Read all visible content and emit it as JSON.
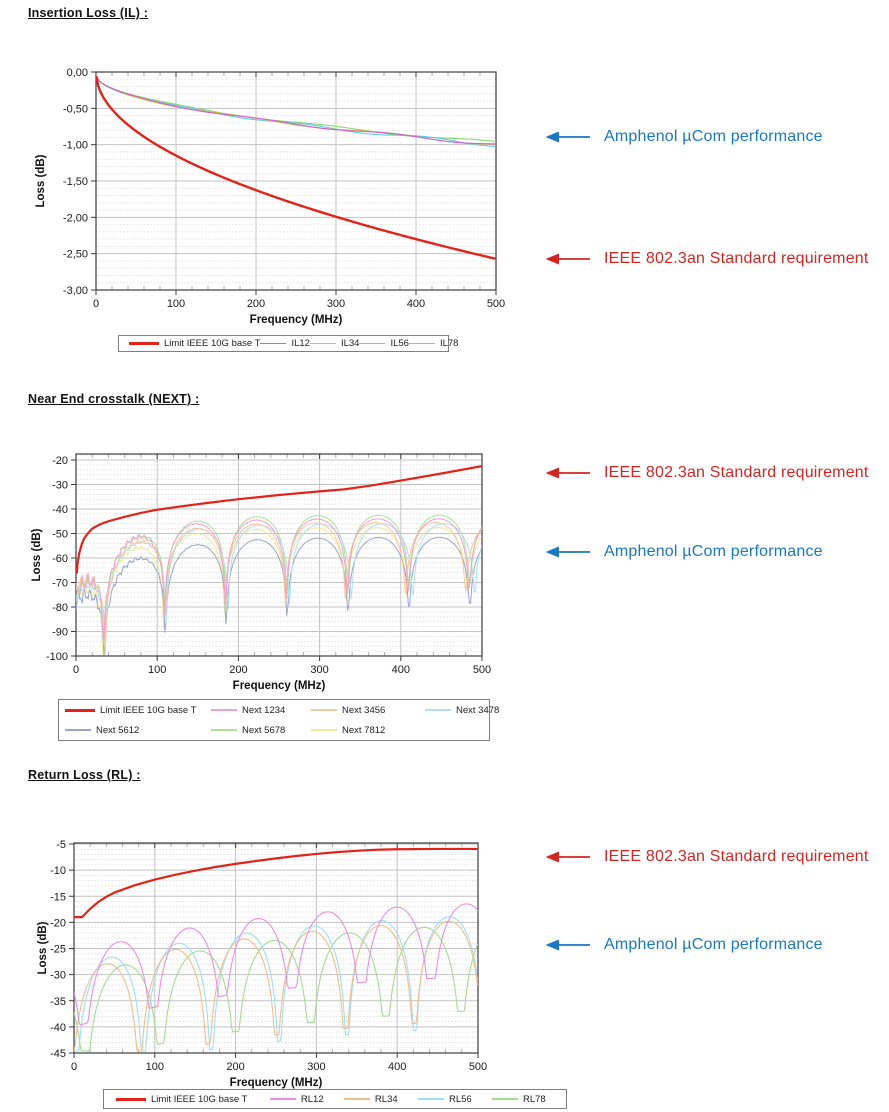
{
  "headings": {
    "il": "Insertion Loss (IL) :",
    "next": "Near End crosstalk (NEXT) :",
    "rl": "Return Loss (RL) :"
  },
  "annotations": {
    "performance": {
      "label": "Amphenol µCom performance",
      "color": "#1878c4"
    },
    "requirement": {
      "label": "IEEE 802.3an Standard requirement",
      "color": "#d62420"
    }
  },
  "chart_data": [
    {
      "id": "il",
      "type": "line",
      "title": "Insertion Loss (IL)",
      "xlabel": "Frequency (MHz)",
      "ylabel": "Loss (dB)",
      "xlim": [
        0,
        500
      ],
      "ylim": [
        -3,
        0
      ],
      "xticks": [
        0,
        100,
        200,
        300,
        400,
        500
      ],
      "yticks": [
        0,
        -0.5,
        -1,
        -1.5,
        -2,
        -2.5,
        -3
      ],
      "ytick_labels": [
        "0,00",
        "-0,50",
        "-1,00",
        "-1,50",
        "-2,00",
        "-2,50",
        "-3,00"
      ],
      "x_minor": 20,
      "y_minor": 0.1,
      "grid": true,
      "legend_position": "bottom",
      "series": [
        {
          "name": "Limit IEEE 10G base T",
          "color": "#e2231a",
          "width": 2.4,
          "gen": {
            "kind": "sqrt",
            "a": 0,
            "b": 0.115,
            "f0": 0.4,
            "f1": 500,
            "step": 2.5
          },
          "key_points": [
            [
              0,
              0
            ],
            [
              100,
              -1.15
            ],
            [
              200,
              -1.63
            ],
            [
              300,
              -1.99
            ],
            [
              400,
              -2.3
            ],
            [
              500,
              -2.57
            ]
          ]
        },
        {
          "name": "IL12",
          "color": "#cf5fd3",
          "width": 1.1,
          "gen": {
            "kind": "il",
            "a": 0.04,
            "b": 0.0428,
            "w": 0.022,
            "p": 26,
            "ph": 0
          },
          "key_points": [
            [
              0,
              -0.05
            ],
            [
              100,
              -0.47
            ],
            [
              200,
              -0.63
            ],
            [
              300,
              -0.78
            ],
            [
              400,
              -0.9
            ],
            [
              500,
              -1.0
            ]
          ]
        },
        {
          "name": "IL34",
          "color": "#e0bd3c",
          "width": 1.1,
          "gen": {
            "kind": "il",
            "a": 0.045,
            "b": 0.0425,
            "w": 0.024,
            "p": 29,
            "ph": 1.7
          },
          "key_points": [
            [
              0,
              -0.05
            ],
            [
              100,
              -0.47
            ],
            [
              200,
              -0.63
            ],
            [
              300,
              -0.78
            ],
            [
              400,
              -0.9
            ],
            [
              500,
              -1.0
            ]
          ]
        },
        {
          "name": "IL56",
          "color": "#5fd0e6",
          "width": 1.1,
          "gen": {
            "kind": "il",
            "a": 0.035,
            "b": 0.0432,
            "w": 0.027,
            "p": 24,
            "ph": 3.3
          },
          "key_points": [
            [
              0,
              -0.05
            ],
            [
              100,
              -0.48
            ],
            [
              200,
              -0.65
            ],
            [
              300,
              -0.8
            ],
            [
              400,
              -0.92
            ],
            [
              500,
              -1.0
            ]
          ]
        },
        {
          "name": "IL78",
          "color": "#8bd96a",
          "width": 1.1,
          "gen": {
            "kind": "il",
            "a": 0.03,
            "b": 0.0422,
            "w": 0.02,
            "p": 31,
            "ph": 4.9
          },
          "key_points": [
            [
              0,
              -0.04
            ],
            [
              100,
              -0.45
            ],
            [
              200,
              -0.62
            ],
            [
              300,
              -0.77
            ],
            [
              400,
              -0.88
            ],
            [
              500,
              -0.98
            ]
          ]
        }
      ]
    },
    {
      "id": "next",
      "type": "line",
      "title": "Near End crosstalk (NEXT)",
      "xlabel": "Frequency (MHz)",
      "ylabel": "Loss (dB)",
      "xlim": [
        0,
        500
      ],
      "ylim": [
        -100,
        -20
      ],
      "xticks": [
        0,
        100,
        200,
        300,
        400,
        500
      ],
      "yticks": [
        -20,
        -30,
        -40,
        -50,
        -60,
        -70,
        -80,
        -90,
        -100
      ],
      "x_minor": 20,
      "y_minor": 2,
      "grid": true,
      "legend_position": "bottom",
      "series": [
        {
          "name": "Limit IEEE 10G base T",
          "color": "#e2231a",
          "width": 2.2,
          "points": [
            [
              1,
              -66
            ],
            [
              2,
              -62
            ],
            [
              4,
              -58
            ],
            [
              7,
              -54.5
            ],
            [
              10,
              -52
            ],
            [
              15,
              -49.8
            ],
            [
              20,
              -48
            ],
            [
              30,
              -46.2
            ],
            [
              40,
              -45
            ],
            [
              60,
              -43.2
            ],
            [
              80,
              -41.6
            ],
            [
              100,
              -40.3
            ],
            [
              130,
              -38.9
            ],
            [
              160,
              -37.6
            ],
            [
              200,
              -36
            ],
            [
              250,
              -34.3
            ],
            [
              300,
              -32.8
            ],
            [
              330,
              -32
            ],
            [
              360,
              -30.6
            ],
            [
              400,
              -28.4
            ],
            [
              450,
              -25.5
            ],
            [
              500,
              -22.5
            ]
          ]
        },
        {
          "name": "Next 1234",
          "color": "#f2a0d0",
          "width": 1,
          "gen": {
            "kind": "scallop",
            "base": -44,
            "amp": 30,
            "tau": 55,
            "T": 75,
            "f0": 34,
            "fl": 0.006,
            "fls": 7e-05,
            "nz": 3.2,
            "ph": 0.7
          }
        },
        {
          "name": "Next 3456",
          "color": "#f6c89e",
          "width": 1,
          "gen": {
            "kind": "scallop",
            "base": -45.5,
            "amp": 28,
            "tau": 60,
            "T": 74,
            "f0": 36,
            "fl": 0.006,
            "fls": 7e-05,
            "nz": 2.5,
            "ph": 2.1
          }
        },
        {
          "name": "Next 3478",
          "color": "#aee0ef",
          "width": 1,
          "gen": {
            "kind": "scallop",
            "base": -46,
            "amp": 29,
            "tau": 58,
            "T": 76,
            "f0": 35,
            "fl": 0.0055,
            "fls": 7e-05,
            "nz": 2.2,
            "ph": 3.6
          }
        },
        {
          "name": "Next 5612",
          "color": "#9aa6c9",
          "width": 1,
          "gen": {
            "kind": "scallop",
            "base": -51.5,
            "amp": 26,
            "tau": 70,
            "T": 75,
            "f0": 35,
            "fl": 0.006,
            "fls": 8e-05,
            "nz": 2.8,
            "ph": 5.0
          }
        },
        {
          "name": "Next 5678",
          "color": "#abe296",
          "width": 1,
          "gen": {
            "kind": "scallop",
            "base": -42.5,
            "amp": 32,
            "tau": 58,
            "T": 75,
            "f0": 35,
            "fl": 0.005,
            "fls": 7e-05,
            "nz": 2.4,
            "ph": 1.3
          }
        },
        {
          "name": "Next 7812",
          "color": "#eceb9a",
          "width": 1,
          "gen": {
            "kind": "scallop",
            "base": -47.5,
            "amp": 28,
            "tau": 62,
            "T": 75,
            "f0": 33,
            "fl": 0.006,
            "fls": 8e-05,
            "nz": 3.0,
            "ph": 4.2
          }
        }
      ]
    },
    {
      "id": "rl",
      "type": "line",
      "title": "Return Loss (RL)",
      "xlabel": "Frequency (MHz)",
      "ylabel": "Loss (dB)",
      "xlim": [
        0,
        500
      ],
      "ylim": [
        -45,
        -5
      ],
      "xticks": [
        0,
        100,
        200,
        300,
        400,
        500
      ],
      "yticks": [
        -5,
        -10,
        -15,
        -20,
        -25,
        -30,
        -35,
        -40,
        -45
      ],
      "x_minor": 20,
      "y_minor": 1,
      "grid": true,
      "legend_position": "bottom",
      "series": [
        {
          "name": "Limit IEEE 10G base T",
          "color": "#e2231a",
          "width": 2.2,
          "points": [
            [
              0,
              -19
            ],
            [
              10,
              -19
            ],
            [
              15,
              -18.2
            ],
            [
              20,
              -17.4
            ],
            [
              30,
              -16.1
            ],
            [
              40,
              -15.1
            ],
            [
              50,
              -14.3
            ],
            [
              75,
              -12.9
            ],
            [
              100,
              -11.8
            ],
            [
              125,
              -10.9
            ],
            [
              150,
              -10.1
            ],
            [
              175,
              -9.4
            ],
            [
              200,
              -8.8
            ],
            [
              225,
              -8.25
            ],
            [
              250,
              -7.75
            ],
            [
              275,
              -7.3
            ],
            [
              300,
              -6.9
            ],
            [
              325,
              -6.55
            ],
            [
              350,
              -6.3
            ],
            [
              375,
              -6.1
            ],
            [
              400,
              -6
            ],
            [
              450,
              -5.95
            ],
            [
              500,
              -5.95
            ]
          ]
        },
        {
          "name": "RL12",
          "color": "#ea8ee2",
          "width": 1.1,
          "gen": {
            "kind": "scallop",
            "base": -15,
            "amp": 11,
            "tau": 240,
            "T": 86,
            "f0": 12,
            "fl": 0.2,
            "fls": 0,
            "nz": 0,
            "ph": 0
          }
        },
        {
          "name": "RL34",
          "color": "#f3bd8d",
          "width": 1.1,
          "gen": {
            "kind": "scallop",
            "base": -17.5,
            "amp": 12,
            "tau": 280,
            "T": 85,
            "f0": -4,
            "fl": 0.11,
            "fls": 0,
            "nz": 0,
            "ph": 0
          }
        },
        {
          "name": "RL56",
          "color": "#9fdff0",
          "width": 1.1,
          "gen": {
            "kind": "scallop",
            "base": -17,
            "amp": 11.5,
            "tau": 260,
            "T": 84,
            "f0": 2,
            "fl": 0.085,
            "fls": 0,
            "nz": 0,
            "ph": 0
          }
        },
        {
          "name": "RL78",
          "color": "#a3dc90",
          "width": 1.1,
          "gen": {
            "kind": "scallop",
            "base": -18,
            "amp": 12.5,
            "tau": 300,
            "T": 93,
            "f0": 14,
            "fl": 0.15,
            "fls": 0,
            "nz": 0,
            "ph": 0
          }
        }
      ]
    }
  ]
}
